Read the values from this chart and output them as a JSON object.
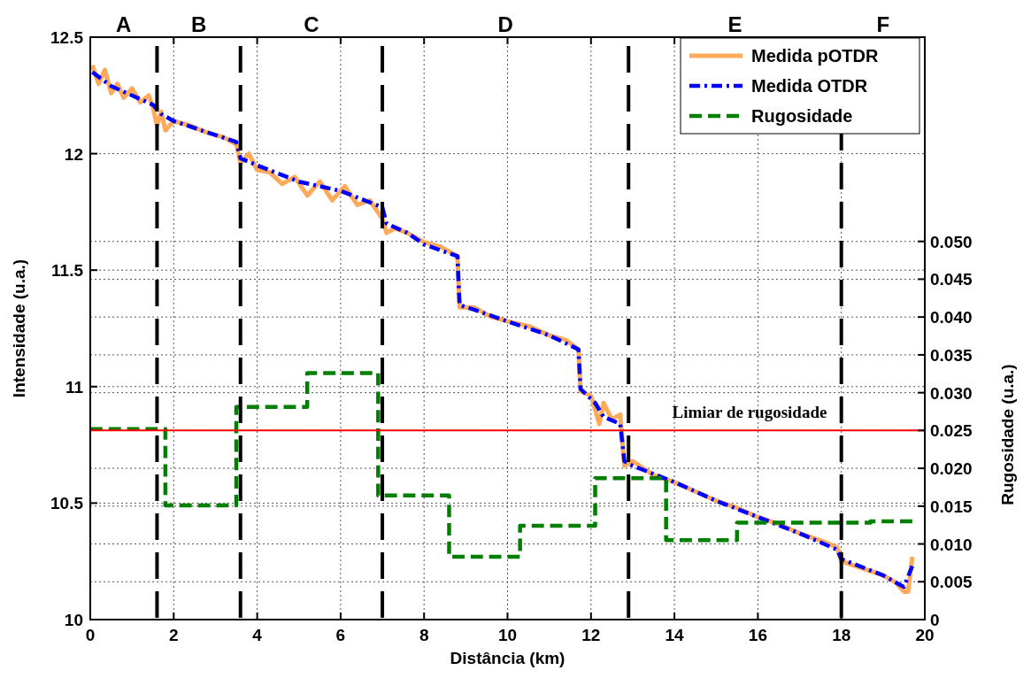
{
  "chart_data": {
    "type": "line",
    "xlabel": "Distância (km)",
    "ylabel": "Intensidade (u.a.)",
    "y2label": "Rugosidade (u.a.)",
    "xlim": [
      0,
      20
    ],
    "xticks": [
      0,
      2,
      4,
      6,
      8,
      10,
      12,
      14,
      16,
      18,
      20
    ],
    "ylim": [
      10,
      12.5
    ],
    "yticks": [
      10,
      10.5,
      11,
      11.5,
      12,
      12.5
    ],
    "y2lim": [
      0,
      0.077
    ],
    "y2ticks": [
      0,
      {
        "value": 0.005,
        "label": "0.005"
      },
      {
        "value": 0.01,
        "label": "0.010"
      },
      {
        "value": 0.015,
        "label": "0.015"
      },
      {
        "value": 0.02,
        "label": "0.020"
      },
      {
        "value": 0.025,
        "label": "0.025"
      },
      {
        "value": 0.03,
        "label": "0.030"
      },
      {
        "value": 0.035,
        "label": "0.035"
      },
      {
        "value": 0.04,
        "label": "0.040"
      },
      {
        "value": 0.045,
        "label": "0.045"
      },
      {
        "value": 0.05,
        "label": "0.050"
      }
    ],
    "grid": true,
    "legend": "top right",
    "series": [
      {
        "name": "Medida pOTDR",
        "color": "#ffaa5a",
        "line_style": "solid",
        "x": [
          0.05,
          0.2,
          0.35,
          0.5,
          0.65,
          0.8,
          1.0,
          1.2,
          1.4,
          1.5,
          1.6,
          1.7,
          1.8,
          2.0,
          2.4,
          2.8,
          3.2,
          3.5,
          3.6,
          3.8,
          4.0,
          4.3,
          4.6,
          4.9,
          5.2,
          5.5,
          5.8,
          6.1,
          6.4,
          6.7,
          7.0,
          7.1,
          7.3,
          7.6,
          8.0,
          8.4,
          8.8,
          8.85,
          9.2,
          9.6,
          10,
          10.5,
          11,
          11.4,
          11.7,
          11.75,
          12.0,
          12.2,
          12.3,
          12.5,
          12.7,
          12.8,
          13.0,
          13.5,
          14,
          14.5,
          15,
          15.5,
          16,
          16.5,
          17,
          17.5,
          17.9,
          18.0,
          18.5,
          19,
          19.3,
          19.5,
          19.6,
          19.7
        ],
        "values": [
          12.38,
          12.3,
          12.36,
          12.26,
          12.3,
          12.24,
          12.28,
          12.22,
          12.25,
          12.2,
          12.12,
          12.18,
          12.1,
          12.14,
          12.12,
          12.09,
          12.07,
          12.04,
          11.96,
          12.0,
          11.93,
          11.92,
          11.87,
          11.9,
          11.82,
          11.88,
          11.8,
          11.86,
          11.78,
          11.8,
          11.72,
          11.66,
          11.68,
          11.66,
          11.62,
          11.6,
          11.56,
          11.34,
          11.34,
          11.3,
          11.28,
          11.26,
          11.22,
          11.2,
          11.16,
          10.98,
          10.96,
          10.84,
          10.93,
          10.86,
          10.88,
          10.66,
          10.68,
          10.62,
          10.59,
          10.55,
          10.51,
          10.48,
          10.44,
          10.41,
          10.37,
          10.34,
          10.31,
          10.25,
          10.22,
          10.19,
          10.16,
          10.12,
          10.12,
          10.27
        ]
      },
      {
        "name": "Medida OTDR",
        "color": "#0000ff",
        "line_style": "dashdot",
        "x": [
          0.05,
          0.5,
          1.0,
          1.5,
          1.7,
          2.0,
          3.5,
          3.6,
          4.0,
          5.0,
          6.0,
          7.0,
          7.1,
          7.6,
          8.0,
          8.8,
          8.85,
          9.2,
          10,
          11,
          11.7,
          11.75,
          12.1,
          12.3,
          12.7,
          12.8,
          13.0,
          14,
          15,
          16,
          17,
          17.9,
          18.0,
          19,
          19.5,
          19.7
        ],
        "values": [
          12.35,
          12.29,
          12.25,
          12.21,
          12.17,
          12.14,
          12.05,
          11.98,
          11.95,
          11.88,
          11.84,
          11.77,
          11.7,
          11.66,
          11.61,
          11.56,
          11.35,
          11.33,
          11.28,
          11.22,
          11.16,
          10.99,
          10.93,
          10.87,
          10.84,
          10.68,
          10.66,
          10.59,
          10.51,
          10.44,
          10.37,
          10.3,
          10.26,
          10.19,
          10.14,
          10.23
        ]
      },
      {
        "name": "Rugosidade",
        "color": "#007f00",
        "line_style": "dashed",
        "axis": "y2",
        "x": [
          0,
          1.8,
          1.8,
          3.5,
          3.5,
          5.2,
          5.2,
          6.9,
          6.9,
          8.6,
          8.6,
          10.3,
          10.3,
          12.1,
          12.1,
          13.8,
          13.8,
          15.5,
          15.5,
          18.7,
          18.7,
          19.7
        ],
        "values": [
          0.0252,
          0.0252,
          0.0151,
          0.0151,
          0.0281,
          0.0281,
          0.0326,
          0.0326,
          0.0164,
          0.0164,
          0.0083,
          0.0083,
          0.0124,
          0.0124,
          0.0187,
          0.0187,
          0.0105,
          0.0105,
          0.0128,
          0.0128,
          0.013,
          0.013
        ]
      }
    ],
    "ref_lines": [
      {
        "axis": "y2",
        "value": 0.025,
        "label": "Limiar de rugosidade",
        "color": "#ff0000",
        "line_style": "solid"
      },
      {
        "axis": "x",
        "value": 1.6,
        "color": "#000000",
        "line_style": "dashed"
      },
      {
        "axis": "x",
        "value": 3.6,
        "color": "#000000",
        "line_style": "dashed"
      },
      {
        "axis": "x",
        "value": 7.0,
        "color": "#000000",
        "line_style": "dashed"
      },
      {
        "axis": "x",
        "value": 12.9,
        "color": "#000000",
        "line_style": "dashed"
      },
      {
        "axis": "x",
        "value": 18.0,
        "color": "#000000",
        "line_style": "dashed"
      }
    ],
    "annotations": [
      "A",
      "B",
      "C",
      "D",
      "E",
      "F"
    ]
  }
}
